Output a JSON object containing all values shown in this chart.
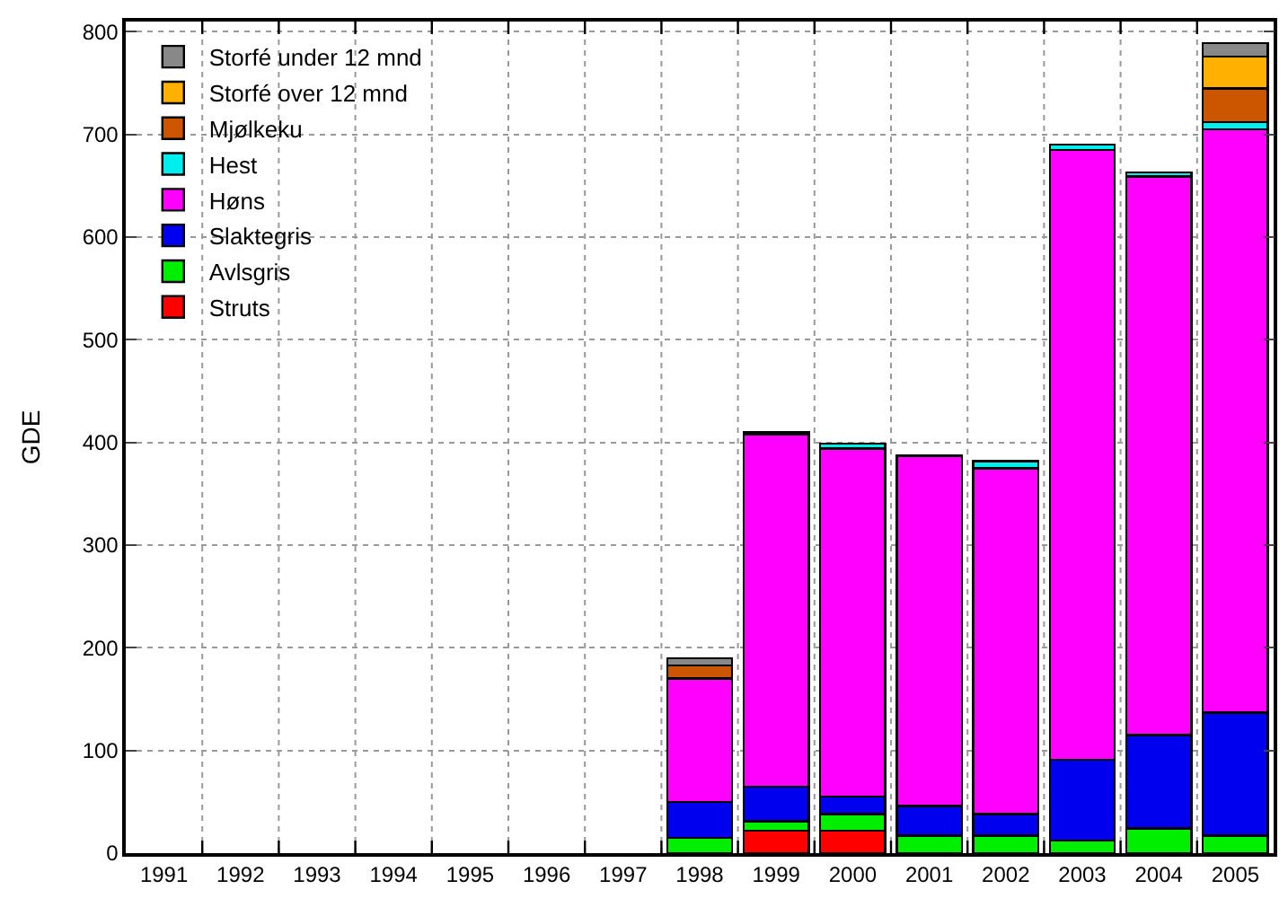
{
  "chart_data": {
    "type": "bar",
    "stacked": true,
    "ylabel": "GDE",
    "categories": [
      "1991",
      "1992",
      "1993",
      "1994",
      "1995",
      "1996",
      "1997",
      "1998",
      "1999",
      "2000",
      "2001",
      "2002",
      "2003",
      "2004",
      "2005"
    ],
    "series": [
      {
        "name": "Struts",
        "color": "#ff0000",
        "values": [
          null,
          null,
          null,
          null,
          null,
          null,
          null,
          null,
          22,
          22,
          null,
          null,
          null,
          null,
          null
        ]
      },
      {
        "name": "Avlsgris",
        "color": "#00ee00",
        "values": [
          null,
          null,
          null,
          null,
          null,
          null,
          null,
          15,
          9,
          16,
          17,
          17,
          12,
          24,
          17
        ]
      },
      {
        "name": "Slaktegris",
        "color": "#0000ee",
        "values": [
          null,
          null,
          null,
          null,
          null,
          null,
          null,
          35,
          34,
          17,
          29,
          21,
          79,
          91,
          120
        ]
      },
      {
        "name": "Høns",
        "color": "#ff00ff",
        "values": [
          null,
          null,
          null,
          null,
          null,
          null,
          null,
          120,
          343,
          339,
          341,
          337,
          594,
          544,
          568
        ]
      },
      {
        "name": "Hest",
        "color": "#00eeee",
        "values": [
          null,
          null,
          null,
          null,
          null,
          null,
          null,
          null,
          2,
          5,
          null,
          7,
          5,
          4,
          7
        ]
      },
      {
        "name": "Mjølkeku",
        "color": "#cc5500",
        "values": [
          null,
          null,
          null,
          null,
          null,
          null,
          null,
          13,
          null,
          null,
          null,
          null,
          null,
          null,
          33
        ]
      },
      {
        "name": "Storfé over 12 mnd",
        "color": "#ffb000",
        "values": [
          null,
          null,
          null,
          null,
          null,
          null,
          null,
          null,
          null,
          null,
          null,
          null,
          null,
          null,
          31
        ]
      },
      {
        "name": "Storfé under 12 mnd",
        "color": "#888888",
        "values": [
          null,
          null,
          null,
          null,
          null,
          null,
          null,
          7,
          null,
          null,
          null,
          null,
          null,
          null,
          13
        ]
      }
    ],
    "ylim": [
      0,
      810
    ],
    "yticks": [
      0,
      100,
      200,
      300,
      400,
      500,
      600,
      700,
      800
    ],
    "grid": true,
    "legend": "top left"
  }
}
